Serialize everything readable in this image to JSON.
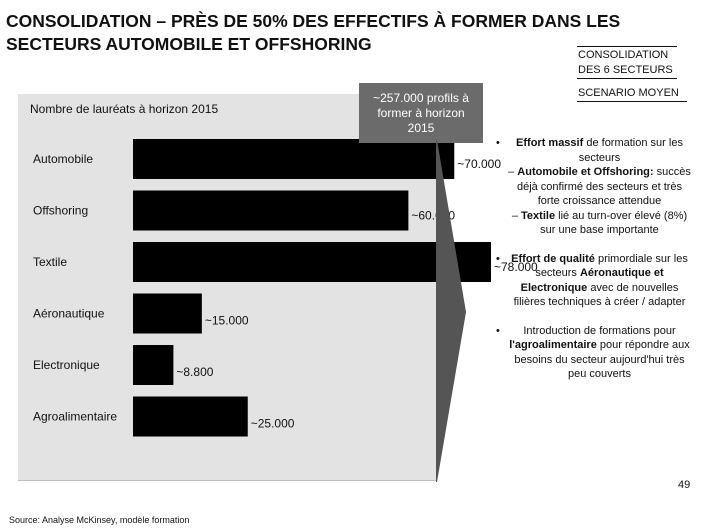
{
  "title": "CONSOLIDATION – PRÈS DE 50% DES EFFECTIFS À FORMER DANS LES SECTEURS AUTOMOBILE ET OFFSHORING",
  "tags": {
    "consolidation": "CONSOLIDATION DES 6 SECTEURS",
    "scenario": "SCENARIO MOYEN"
  },
  "callout": "~257.000 profils à former à horizon 2015",
  "chart_data": {
    "type": "bar",
    "orientation": "horizontal",
    "title": "Nombre de lauréats à horizon 2015",
    "categories": [
      "Automobile",
      "Offshoring",
      "Textile",
      "Aéronautique",
      "Electronique",
      "Agroalimentaire"
    ],
    "values": [
      70000,
      60000,
      78000,
      15000,
      8800,
      25000
    ],
    "value_labels": [
      "~70.000",
      "~60.000",
      "~78.000",
      "~15.000",
      "~8.800",
      "~25.000"
    ],
    "xlim": [
      0,
      78000
    ],
    "bar_color": "#000000"
  },
  "bullets": [
    {
      "bold": "Effort massif",
      "text": "de formation sur les secteurs",
      "subs": [
        {
          "bold": "Automobile et Offshoring:",
          "text": "succès déjà confirmé des secteurs et très forte croissance attendue"
        },
        {
          "bold": "Textile",
          "text": "lié au turn-over élevé (8%) sur une base importante"
        }
      ]
    },
    {
      "bold": "Effort de qualité",
      "text": "primordiale sur les secteurs",
      "bold2": "Aéronautique et Electronique",
      "text2": "avec de nouvelles filières techniques à créer / adapter"
    },
    {
      "text": "Introduction de formations pour",
      "bold": "l'agroalimentaire",
      "text2": "pour répondre aux besoins du secteur aujourd'hui très peu couverts"
    }
  ],
  "bullet_symbol": "•",
  "dash_symbol": "–",
  "source": "Source:   Analyse McKinsey, modèle formation",
  "page_number": "49"
}
